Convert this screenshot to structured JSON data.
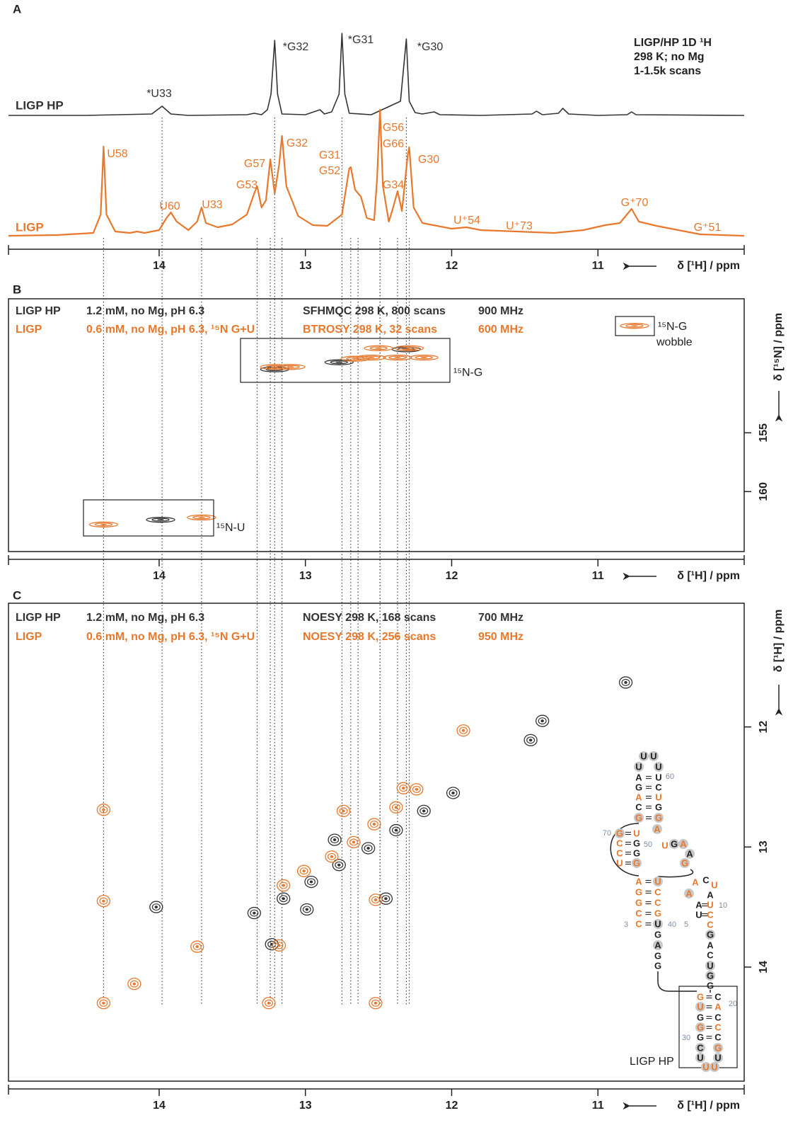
{
  "chart_data": [
    {
      "panel": "A",
      "type": "line",
      "xlabel": "δ [¹H] / ppm",
      "xlim": [
        15.03,
        10.0
      ],
      "xticks": [
        14,
        13,
        12,
        11
      ],
      "info": [
        "LIGP/HP   1D ¹H",
        "298 K; no Mg",
        "1-1.5k scans"
      ],
      "series": [
        {
          "name": "LIGP HP",
          "color": "#333333",
          "x": [
            15.03,
            14.5,
            14.05,
            13.98,
            13.92,
            13.8,
            13.4,
            13.35,
            13.3,
            13.26,
            13.235,
            13.21,
            13.19,
            13.16,
            13.0,
            12.9,
            12.87,
            12.82,
            12.77,
            12.75,
            12.73,
            12.7,
            12.55,
            12.35,
            12.31,
            12.29,
            12.25,
            12.2,
            12.12,
            12.08,
            11.8,
            11.45,
            11.42,
            11.38,
            11.27,
            11.24,
            11.2,
            11.0,
            10.8,
            10.77,
            10.74,
            10.0
          ],
          "values": [
            0,
            0,
            2,
            13,
            2,
            0,
            1,
            3,
            1,
            8,
            30,
            106,
            30,
            2,
            1,
            8,
            2,
            5,
            30,
            116,
            30,
            3,
            1,
            20,
            108,
            20,
            4,
            2,
            5,
            1,
            0,
            2,
            6,
            1,
            3,
            10,
            2,
            0,
            1,
            5,
            1,
            0
          ],
          "peak_labels": [
            {
              "text": "*U33",
              "x": 13.98
            },
            {
              "text": "*G32",
              "x": 13.21
            },
            {
              "text": "*G31",
              "x": 12.75
            },
            {
              "text": "*G30",
              "x": 12.31
            }
          ]
        },
        {
          "name": "LIGP",
          "color": "#e8782c",
          "x": [
            15.03,
            14.7,
            14.45,
            14.4,
            14.38,
            14.36,
            14.3,
            14.2,
            14.15,
            14.1,
            14.0,
            13.95,
            13.92,
            13.88,
            13.8,
            13.74,
            13.71,
            13.68,
            13.6,
            13.5,
            13.4,
            13.35,
            13.33,
            13.3,
            13.27,
            13.24,
            13.21,
            13.18,
            13.16,
            13.13,
            13.05,
            12.95,
            12.85,
            12.75,
            12.7,
            12.69,
            12.66,
            12.62,
            12.58,
            12.53,
            12.51,
            12.49,
            12.47,
            12.43,
            12.4,
            12.37,
            12.34,
            12.3,
            12.29,
            12.26,
            12.2,
            12.0,
            11.9,
            11.8,
            11.55,
            11.3,
            11.1,
            10.95,
            10.85,
            10.77,
            10.72,
            10.6,
            10.5,
            10.3,
            10.0
          ],
          "values": [
            0,
            1,
            4,
            30,
            126,
            30,
            6,
            4,
            6,
            4,
            8,
            25,
            33,
            20,
            8,
            20,
            40,
            18,
            12,
            16,
            30,
            60,
            70,
            40,
            50,
            108,
            60,
            100,
            141,
            70,
            28,
            15,
            14,
            30,
            95,
            97,
            65,
            55,
            25,
            22,
            80,
            178,
            70,
            20,
            40,
            63,
            35,
            115,
            125,
            40,
            18,
            10,
            12,
            8,
            6,
            4,
            8,
            15,
            18,
            38,
            20,
            14,
            10,
            2,
            0
          ],
          "peak_labels": [
            {
              "text": "U58",
              "x": 14.38
            },
            {
              "text": "U60",
              "x": 13.92
            },
            {
              "text": "U33",
              "x": 13.71
            },
            {
              "text": "G53",
              "x": 13.33
            },
            {
              "text": "G57",
              "x": 13.24
            },
            {
              "text": "G32",
              "x": 13.16
            },
            {
              "text": "G31",
              "x": 12.69
            },
            {
              "text": "G52",
              "x": 12.64
            },
            {
              "text": "G56",
              "x": 12.49
            },
            {
              "text": "G66",
              "x": 12.49
            },
            {
              "text": "G34",
              "x": 12.37
            },
            {
              "text": "G30",
              "x": 12.29
            },
            {
              "text": "U⁺54",
              "x": 11.9
            },
            {
              "text": "U⁺73",
              "x": 11.55
            },
            {
              "text": "G⁺70",
              "x": 10.77
            },
            {
              "text": "G⁺51",
              "x": 10.3
            }
          ]
        }
      ]
    },
    {
      "panel": "B",
      "type": "scatter",
      "xlabel": "δ [¹H] / ppm",
      "ylabel": "δ [¹⁵N] / ppm",
      "xlim": [
        15.03,
        10.0
      ],
      "xticks": [
        14,
        13,
        12,
        11
      ],
      "ylim": [
        143.6,
        165.1
      ],
      "yticks": [
        155,
        160
      ],
      "boxes": [
        [
          "¹⁵N-G"
        ],
        [
          "¹⁵N-U"
        ],
        [
          "¹⁵N-G",
          "wobble"
        ]
      ],
      "series": [
        {
          "name": "LIGP HP",
          "color": "#333333",
          "details": [
            "1.2 mM, no Mg, pH 6.3",
            "SFHMQC 298 K, 800 scans",
            "900 MHz"
          ],
          "x": [
            13.99,
            13.21,
            12.77,
            12.31
          ],
          "values": [
            162.4,
            149.6,
            149.0,
            147.9
          ]
        },
        {
          "name": "LIGP",
          "color": "#e8782c",
          "details": [
            "0.6 mM, no Mg, pH 6.3, ¹⁵N G+U",
            "BTROSY 298 K, 32 scans",
            "600 MHz"
          ],
          "x": [
            14.38,
            13.71,
            13.21,
            13.1,
            12.66,
            12.55,
            12.5,
            12.37,
            12.29,
            12.19,
            10.75
          ],
          "values": [
            162.8,
            162.2,
            149.4,
            149.4,
            148.7,
            148.6,
            147.8,
            148.6,
            147.8,
            148.6,
            145.9
          ]
        }
      ]
    },
    {
      "panel": "C",
      "type": "scatter",
      "xlabel": "δ [¹H] / ppm",
      "ylabel": "δ [¹H] / ppm",
      "xlim": [
        15.03,
        10.0
      ],
      "xticks": [
        14,
        13,
        12,
        11
      ],
      "ylim": [
        10.97,
        14.95
      ],
      "yticks": [
        12,
        13,
        14
      ],
      "series": [
        {
          "name": "LIGP HP",
          "color": "#333333",
          "details": [
            "1.2 mM, no Mg, pH 6.3",
            "NOESY 298 K, 168 scans",
            "700 MHz"
          ],
          "x": [
            13.35,
            13.15,
            12.96,
            12.77,
            12.57,
            12.38,
            12.19,
            11.99,
            14.02,
            12.99,
            12.45,
            12.8,
            11.38,
            11.46,
            10.81,
            13.23
          ],
          "values": [
            13.55,
            13.43,
            13.29,
            13.15,
            13.01,
            12.86,
            12.7,
            12.55,
            13.5,
            13.52,
            13.43,
            12.94,
            11.95,
            12.11,
            11.63,
            13.81
          ]
        },
        {
          "name": "LIGP",
          "color": "#e8782c",
          "details": [
            "0.6 mM, no Mg, pH 6.3, ¹⁵N G+U",
            "NOESY 298 K, 256 scans",
            "950 MHz"
          ],
          "x": [
            13.15,
            13.01,
            12.82,
            12.67,
            12.53,
            12.38,
            12.24,
            14.38,
            14.38,
            14.38,
            14.17,
            13.74,
            13.25,
            12.52,
            13.18,
            12.74,
            12.52,
            12.33,
            11.92
          ],
          "values": [
            13.32,
            13.2,
            13.08,
            12.96,
            12.81,
            12.67,
            12.52,
            12.69,
            13.45,
            14.3,
            14.14,
            13.83,
            14.3,
            14.3,
            13.82,
            12.7,
            13.44,
            12.51,
            12.03
          ]
        }
      ]
    }
  ],
  "structure": {
    "label": "LIGP HP",
    "numbers": [
      "60",
      "70",
      "50",
      "10",
      "3",
      "40",
      "5",
      "20",
      "30"
    ],
    "nucleotides": [
      {
        "base": "U",
        "color": "#222222"
      },
      {
        "base": "U",
        "color": "#222222"
      },
      {
        "base": "U",
        "color": "#222222"
      },
      {
        "base": "U",
        "color": "#222222"
      },
      {
        "base": "A",
        "color": "#222222"
      },
      {
        "base": "U",
        "color": "#222222"
      },
      {
        "base": "G",
        "color": "#222222"
      },
      {
        "base": "C",
        "color": "#222222"
      },
      {
        "base": "A",
        "color": "#e8782c"
      },
      {
        "base": "U",
        "color": "#e8782c"
      },
      {
        "base": "C",
        "color": "#222222"
      },
      {
        "base": "G",
        "color": "#222222"
      },
      {
        "base": "G",
        "color": "#e8782c"
      },
      {
        "base": "G",
        "color": "#e8782c"
      },
      {
        "base": "A",
        "color": "#e8782c"
      },
      {
        "base": "G",
        "color": "#e8782c"
      },
      {
        "base": "U",
        "color": "#e8782c"
      },
      {
        "base": "C",
        "color": "#e8782c"
      },
      {
        "base": "G",
        "color": "#222222"
      },
      {
        "base": "C",
        "color": "#e8782c"
      },
      {
        "base": "G",
        "color": "#222222"
      },
      {
        "base": "U",
        "color": "#e8782c"
      },
      {
        "base": "G",
        "color": "#e8782c"
      },
      {
        "base": "U",
        "color": "#e8782c"
      },
      {
        "base": "G",
        "color": "#222222"
      },
      {
        "base": "A",
        "color": "#e8782c"
      },
      {
        "base": "A",
        "color": "#222222"
      },
      {
        "base": "G",
        "color": "#e8782c"
      },
      {
        "base": "A",
        "color": "#e8782c"
      },
      {
        "base": "U",
        "color": "#e8782c"
      },
      {
        "base": "G",
        "color": "#e8782c"
      },
      {
        "base": "C",
        "color": "#e8782c"
      },
      {
        "base": "G",
        "color": "#e8782c"
      },
      {
        "base": "C",
        "color": "#e8782c"
      },
      {
        "base": "C",
        "color": "#e8782c"
      },
      {
        "base": "G",
        "color": "#e8782c"
      },
      {
        "base": "C",
        "color": "#e8782c"
      },
      {
        "base": "U",
        "color": "#222222"
      },
      {
        "base": "G",
        "color": "#222222"
      },
      {
        "base": "A",
        "color": "#222222"
      },
      {
        "base": "G",
        "color": "#222222"
      },
      {
        "base": "G",
        "color": "#222222"
      },
      {
        "base": "A",
        "color": "#e8782c"
      },
      {
        "base": "C",
        "color": "#222222"
      },
      {
        "base": "U",
        "color": "#e8782c"
      },
      {
        "base": "A",
        "color": "#e8782c"
      },
      {
        "base": "A",
        "color": "#222222"
      },
      {
        "base": "A",
        "color": "#222222"
      },
      {
        "base": "U",
        "color": "#e8782c"
      },
      {
        "base": "U",
        "color": "#222222"
      },
      {
        "base": "C",
        "color": "#e8782c"
      },
      {
        "base": "C",
        "color": "#e8782c"
      },
      {
        "base": "G",
        "color": "#222222"
      },
      {
        "base": "A",
        "color": "#222222"
      },
      {
        "base": "C",
        "color": "#222222"
      },
      {
        "base": "U",
        "color": "#222222"
      },
      {
        "base": "G",
        "color": "#222222"
      },
      {
        "base": "G",
        "color": "#222222"
      },
      {
        "base": "G",
        "color": "#e8782c"
      },
      {
        "base": "C",
        "color": "#222222"
      },
      {
        "base": "U",
        "color": "#e8782c"
      },
      {
        "base": "A",
        "color": "#e8782c"
      },
      {
        "base": "G",
        "color": "#222222"
      },
      {
        "base": "C",
        "color": "#222222"
      },
      {
        "base": "G",
        "color": "#e8782c"
      },
      {
        "base": "C",
        "color": "#e8782c"
      },
      {
        "base": "G",
        "color": "#222222"
      },
      {
        "base": "C",
        "color": "#222222"
      },
      {
        "base": "C",
        "color": "#222222"
      },
      {
        "base": "G",
        "color": "#e8782c"
      },
      {
        "base": "U",
        "color": "#222222"
      },
      {
        "base": "U",
        "color": "#222222"
      },
      {
        "base": "U",
        "color": "#e8782c"
      },
      {
        "base": "U",
        "color": "#e8782c"
      }
    ]
  }
}
